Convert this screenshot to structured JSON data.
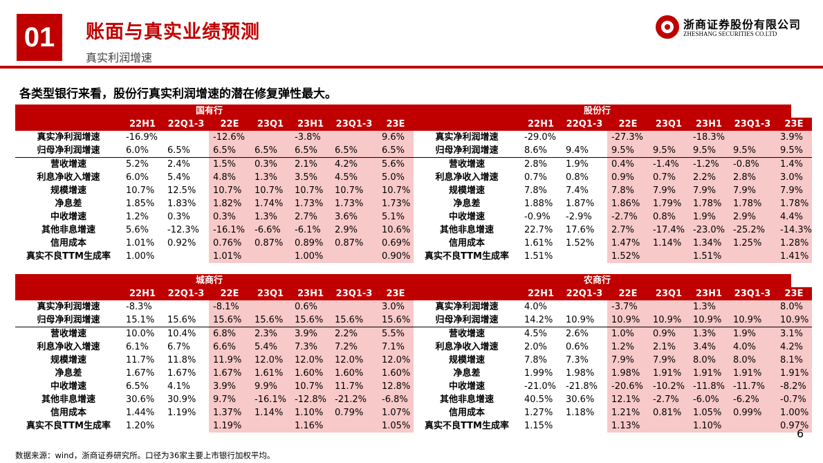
{
  "header": {
    "section_number": "01",
    "title": "账面与真实业绩预测",
    "subtitle": "真实利润增速",
    "logo_cn": "浙商证券股份有限公司",
    "logo_en": "ZHESHANG SECURITIES CO.LTD",
    "accent_color": "#c00000",
    "highlight_color": "#f8c9c9"
  },
  "lead_text": "各类型银行来看，股份行真实利润增速的潜在修复弹性最大。",
  "columns": [
    "22H1",
    "22Q1-3",
    "22E",
    "23Q1",
    "23H1",
    "23Q1-3",
    "23E"
  ],
  "tables": [
    {
      "banks": [
        {
          "name": "国有行",
          "rows": [
            {
              "label": "真实净利润增速",
              "values": [
                "-16.9%",
                "",
                "-12.6%",
                "",
                "-3.8%",
                "",
                "9.6%"
              ]
            },
            {
              "label": "归母净利润增速",
              "values": [
                "6.0%",
                "6.5%",
                "6.5%",
                "6.5%",
                "6.5%",
                "6.5%",
                "6.5%"
              ]
            },
            {
              "label": "营收增速",
              "values": [
                "5.2%",
                "2.4%",
                "1.5%",
                "0.3%",
                "2.1%",
                "4.2%",
                "5.6%"
              ]
            },
            {
              "label": "利息净收入增速",
              "values": [
                "6.0%",
                "5.4%",
                "4.8%",
                "1.3%",
                "3.5%",
                "4.5%",
                "5.0%"
              ]
            },
            {
              "label": "规模增速",
              "values": [
                "10.7%",
                "12.5%",
                "10.7%",
                "10.7%",
                "10.7%",
                "10.7%",
                "10.7%"
              ]
            },
            {
              "label": "净息差",
              "values": [
                "1.85%",
                "1.83%",
                "1.82%",
                "1.74%",
                "1.73%",
                "1.73%",
                "1.73%"
              ]
            },
            {
              "label": "中收增速",
              "values": [
                "1.2%",
                "0.3%",
                "0.3%",
                "1.3%",
                "2.7%",
                "3.6%",
                "5.1%"
              ]
            },
            {
              "label": "其他非息增速",
              "values": [
                "5.6%",
                "-12.3%",
                "-16.1%",
                "-6.6%",
                "-6.1%",
                "2.9%",
                "10.6%"
              ]
            },
            {
              "label": "信用成本",
              "values": [
                "1.01%",
                "0.92%",
                "0.76%",
                "0.87%",
                "0.89%",
                "0.87%",
                "0.69%"
              ]
            },
            {
              "label": "真实不良TTM生成率",
              "values": [
                "1.00%",
                "",
                "1.01%",
                "",
                "1.00%",
                "",
                "0.90%"
              ]
            }
          ]
        },
        {
          "name": "股份行",
          "rows": [
            {
              "label": "真实净利润增速",
              "values": [
                "-29.0%",
                "",
                "-27.3%",
                "",
                "-18.3%",
                "",
                "3.9%"
              ]
            },
            {
              "label": "归母净利润增速",
              "values": [
                "8.6%",
                "9.4%",
                "9.5%",
                "9.5%",
                "9.5%",
                "9.5%",
                "9.5%"
              ]
            },
            {
              "label": "营收增速",
              "values": [
                "2.8%",
                "1.9%",
                "0.4%",
                "-1.4%",
                "-1.2%",
                "-0.8%",
                "1.4%"
              ]
            },
            {
              "label": "利息净收入增速",
              "values": [
                "0.7%",
                "0.8%",
                "0.9%",
                "0.7%",
                "2.2%",
                "2.8%",
                "3.0%"
              ]
            },
            {
              "label": "规模增速",
              "values": [
                "7.8%",
                "7.4%",
                "7.8%",
                "7.9%",
                "7.9%",
                "7.9%",
                "7.9%"
              ]
            },
            {
              "label": "净息差",
              "values": [
                "1.88%",
                "1.87%",
                "1.86%",
                "1.79%",
                "1.78%",
                "1.78%",
                "1.78%"
              ]
            },
            {
              "label": "中收增速",
              "values": [
                "-0.9%",
                "-2.9%",
                "-2.7%",
                "0.8%",
                "1.9%",
                "2.9%",
                "4.4%"
              ]
            },
            {
              "label": "其他非息增速",
              "values": [
                "22.7%",
                "17.6%",
                "2.7%",
                "-17.4%",
                "-23.0%",
                "-25.2%",
                "-14.3%"
              ]
            },
            {
              "label": "信用成本",
              "values": [
                "1.61%",
                "1.52%",
                "1.47%",
                "1.14%",
                "1.34%",
                "1.25%",
                "1.28%"
              ]
            },
            {
              "label": "真实不良TTM生成率",
              "values": [
                "1.51%",
                "",
                "1.52%",
                "",
                "1.51%",
                "",
                "1.41%"
              ]
            }
          ]
        }
      ]
    },
    {
      "banks": [
        {
          "name": "城商行",
          "rows": [
            {
              "label": "真实净利润增速",
              "values": [
                "-8.3%",
                "",
                "-8.1%",
                "",
                "0.6%",
                "",
                "3.0%"
              ]
            },
            {
              "label": "归母净利润增速",
              "values": [
                "15.1%",
                "15.6%",
                "15.6%",
                "15.6%",
                "15.6%",
                "15.6%",
                "15.6%"
              ]
            },
            {
              "label": "营收增速",
              "values": [
                "10.0%",
                "10.4%",
                "6.8%",
                "2.3%",
                "3.9%",
                "2.2%",
                "5.5%"
              ]
            },
            {
              "label": "利息净收入增速",
              "values": [
                "6.1%",
                "6.7%",
                "6.6%",
                "5.4%",
                "7.3%",
                "7.2%",
                "7.1%"
              ]
            },
            {
              "label": "规模增速",
              "values": [
                "11.7%",
                "11.8%",
                "11.9%",
                "12.0%",
                "12.0%",
                "12.0%",
                "12.0%"
              ]
            },
            {
              "label": "净息差",
              "values": [
                "1.67%",
                "1.67%",
                "1.67%",
                "1.61%",
                "1.60%",
                "1.60%",
                "1.60%"
              ]
            },
            {
              "label": "中收增速",
              "values": [
                "6.5%",
                "4.1%",
                "3.9%",
                "9.9%",
                "10.7%",
                "11.7%",
                "12.8%"
              ]
            },
            {
              "label": "其他非息增速",
              "values": [
                "30.6%",
                "30.9%",
                "9.7%",
                "-16.1%",
                "-12.8%",
                "-21.2%",
                "-6.8%"
              ]
            },
            {
              "label": "信用成本",
              "values": [
                "1.44%",
                "1.19%",
                "1.37%",
                "1.14%",
                "1.10%",
                "0.79%",
                "1.07%"
              ]
            },
            {
              "label": "真实不良TTM生成率",
              "values": [
                "1.20%",
                "",
                "1.19%",
                "",
                "1.16%",
                "",
                "1.05%"
              ]
            }
          ]
        },
        {
          "name": "农商行",
          "rows": [
            {
              "label": "真实净利润增速",
              "values": [
                "4.0%",
                "",
                "-3.7%",
                "",
                "1.3%",
                "",
                "8.0%"
              ]
            },
            {
              "label": "归母净利润增速",
              "values": [
                "14.2%",
                "10.9%",
                "10.9%",
                "10.9%",
                "10.9%",
                "10.9%",
                "10.9%"
              ]
            },
            {
              "label": "营收增速",
              "values": [
                "4.5%",
                "2.6%",
                "1.0%",
                "0.9%",
                "1.3%",
                "1.9%",
                "3.1%"
              ]
            },
            {
              "label": "利息净收入增速",
              "values": [
                "2.0%",
                "0.6%",
                "1.2%",
                "2.1%",
                "3.4%",
                "4.0%",
                "4.2%"
              ]
            },
            {
              "label": "规模增速",
              "values": [
                "7.8%",
                "7.3%",
                "7.9%",
                "7.9%",
                "8.0%",
                "8.0%",
                "8.1%"
              ]
            },
            {
              "label": "净息差",
              "values": [
                "1.99%",
                "1.98%",
                "1.98%",
                "1.91%",
                "1.91%",
                "1.91%",
                "1.91%"
              ]
            },
            {
              "label": "中收增速",
              "values": [
                "-21.0%",
                "-21.8%",
                "-20.6%",
                "-10.2%",
                "-11.8%",
                "-11.7%",
                "-8.2%"
              ]
            },
            {
              "label": "其他非息增速",
              "values": [
                "40.5%",
                "30.6%",
                "12.1%",
                "-2.7%",
                "-6.0%",
                "-6.2%",
                "-0.7%"
              ]
            },
            {
              "label": "信用成本",
              "values": [
                "1.27%",
                "1.18%",
                "1.21%",
                "0.81%",
                "1.05%",
                "0.99%",
                "1.00%"
              ]
            },
            {
              "label": "真实不良TTM生成率",
              "values": [
                "1.15%",
                "",
                "1.13%",
                "",
                "1.10%",
                "",
                "0.97%"
              ]
            }
          ]
        }
      ]
    }
  ],
  "footnote": "数据来源：wind，浙商证券研究所。口径为36家主要上市银行加权平均。",
  "page_number": "6"
}
